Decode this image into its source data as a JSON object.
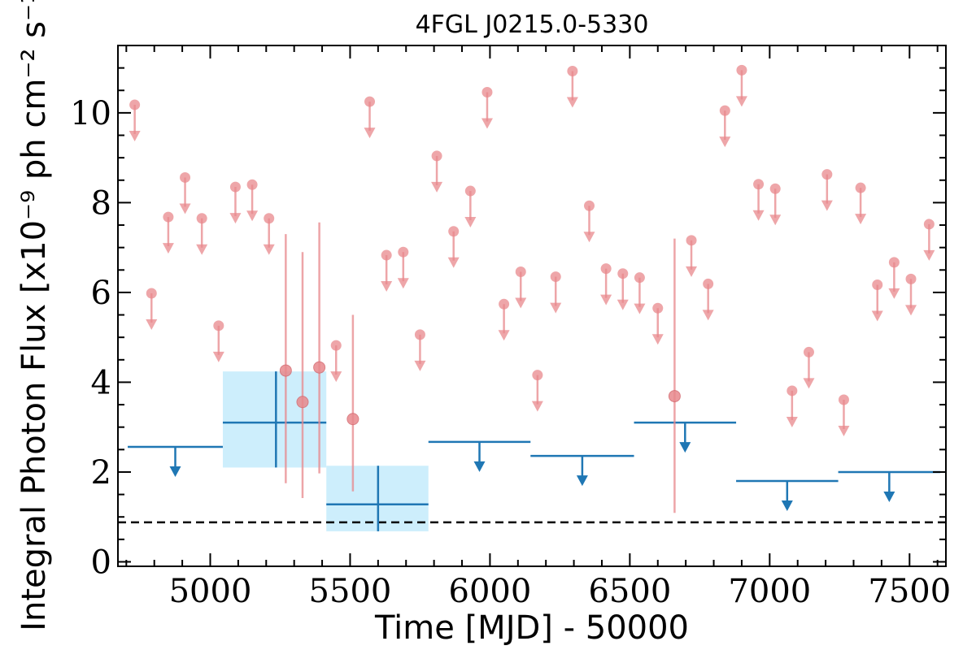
{
  "chart_data": {
    "type": "scatter",
    "title": "4FGL J0215.0-5330",
    "xlabel": "Time [MJD] - 50000",
    "ylabel": "Integral Photon Flux [x10⁻⁹ ph cm⁻² s⁻¹]",
    "xlim": [
      4670,
      7630
    ],
    "ylim": [
      -0.1,
      11.5
    ],
    "x_ticks": [
      5000,
      5500,
      6000,
      6500,
      7000,
      7500
    ],
    "y_ticks": [
      0,
      2,
      4,
      6,
      8,
      10
    ],
    "grid": false,
    "colors": {
      "short_bins": "#e8888c",
      "long_bins": "#1f77b4",
      "error_box": "#cdeefc",
      "reference_line": "#000000"
    },
    "reference_level": 0.88,
    "short_bin_upper_limits": [
      {
        "x": 4730,
        "y": 10.18
      },
      {
        "x": 4790,
        "y": 5.98
      },
      {
        "x": 4850,
        "y": 7.68
      },
      {
        "x": 4910,
        "y": 8.56
      },
      {
        "x": 4970,
        "y": 7.65
      },
      {
        "x": 5030,
        "y": 5.26
      },
      {
        "x": 5090,
        "y": 8.35
      },
      {
        "x": 5150,
        "y": 8.4
      },
      {
        "x": 5210,
        "y": 7.65
      },
      {
        "x": 5450,
        "y": 4.82
      },
      {
        "x": 5570,
        "y": 10.25
      },
      {
        "x": 5630,
        "y": 6.83
      },
      {
        "x": 5690,
        "y": 6.9
      },
      {
        "x": 5750,
        "y": 5.06
      },
      {
        "x": 5810,
        "y": 9.04
      },
      {
        "x": 5870,
        "y": 7.36
      },
      {
        "x": 5930,
        "y": 8.26
      },
      {
        "x": 5990,
        "y": 10.46
      },
      {
        "x": 6050,
        "y": 5.74
      },
      {
        "x": 6110,
        "y": 6.46
      },
      {
        "x": 6170,
        "y": 4.16
      },
      {
        "x": 6235,
        "y": 6.35
      },
      {
        "x": 6295,
        "y": 10.93
      },
      {
        "x": 6355,
        "y": 7.93
      },
      {
        "x": 6415,
        "y": 6.53
      },
      {
        "x": 6475,
        "y": 6.42
      },
      {
        "x": 6535,
        "y": 6.33
      },
      {
        "x": 6600,
        "y": 5.65
      },
      {
        "x": 6720,
        "y": 7.16
      },
      {
        "x": 6780,
        "y": 6.19
      },
      {
        "x": 6840,
        "y": 10.05
      },
      {
        "x": 6900,
        "y": 10.95
      },
      {
        "x": 6960,
        "y": 8.41
      },
      {
        "x": 7020,
        "y": 8.31
      },
      {
        "x": 7080,
        "y": 3.81
      },
      {
        "x": 7140,
        "y": 4.67
      },
      {
        "x": 7205,
        "y": 8.63
      },
      {
        "x": 7265,
        "y": 3.61
      },
      {
        "x": 7325,
        "y": 8.33
      },
      {
        "x": 7385,
        "y": 6.17
      },
      {
        "x": 7445,
        "y": 6.67
      },
      {
        "x": 7505,
        "y": 6.3
      },
      {
        "x": 7570,
        "y": 7.52
      }
    ],
    "short_bin_detections": [
      {
        "x": 5270,
        "y": 4.26,
        "y_low": 1.75,
        "y_high": 7.3
      },
      {
        "x": 5330,
        "y": 3.56,
        "y_low": 1.42,
        "y_high": 6.9
      },
      {
        "x": 5390,
        "y": 4.33,
        "y_low": 1.97,
        "y_high": 7.56
      },
      {
        "x": 5510,
        "y": 3.18,
        "y_low": 1.57,
        "y_high": 5.5
      },
      {
        "x": 6660,
        "y": 3.69,
        "y_low": 1.09,
        "y_high": 7.2
      }
    ],
    "long_bin_upper_limits": [
      {
        "x_start": 4705,
        "x_end": 5045,
        "y": 2.56
      },
      {
        "x_start": 5780,
        "x_end": 6145,
        "y": 2.67
      },
      {
        "x_start": 6145,
        "x_end": 6515,
        "y": 2.36
      },
      {
        "x_start": 6515,
        "x_end": 6880,
        "y": 3.1
      },
      {
        "x_start": 6880,
        "x_end": 7245,
        "y": 1.8
      },
      {
        "x_start": 7245,
        "x_end": 7610,
        "y": 2.0
      }
    ],
    "long_bin_detections": [
      {
        "x_start": 5045,
        "x_end": 5415,
        "x": 5235,
        "y": 3.1,
        "y_low": 2.1,
        "y_high": 4.24
      },
      {
        "x_start": 5415,
        "x_end": 5780,
        "x": 5600,
        "y": 1.28,
        "y_low": 0.68,
        "y_high": 2.14
      }
    ]
  }
}
